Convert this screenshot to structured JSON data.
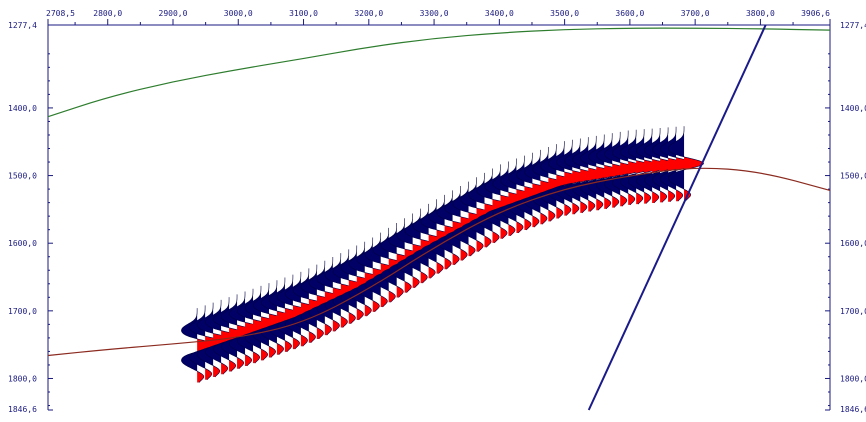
{
  "chart_data": {
    "type": "line",
    "title": "",
    "xlabel": "",
    "ylabel": "",
    "x_axis": {
      "position": "top",
      "range": [
        2708.5,
        3906.6
      ],
      "ticks": [
        2708.5,
        2800.0,
        2900.0,
        3000.0,
        3100.0,
        3200.0,
        3300.0,
        3400.0,
        3500.0,
        3600.0,
        3700.0,
        3800.0,
        3906.6
      ],
      "tick_labels": [
        "2708,5",
        "2800,0",
        "2900,0",
        "3000,0",
        "3100,0",
        "3200,0",
        "3300,0",
        "3400,0",
        "3500,0",
        "3600,0",
        "3700,0",
        "3800,0",
        "3906,6"
      ]
    },
    "y_axis": {
      "position": "left-and-right",
      "inverted": true,
      "range": [
        1277.4,
        1846.6
      ],
      "ticks": [
        1277.4,
        1400.0,
        1500.0,
        1600.0,
        1700.0,
        1800.0,
        1846.6
      ],
      "tick_labels": [
        "1277,4",
        "1400,0",
        "1500,0",
        "1600,0",
        "1700,0",
        "1800,0",
        "1846,6"
      ]
    },
    "grid": false,
    "series": [
      {
        "kind": "green-curve",
        "color": "#2e7d2e",
        "x": [
          2708.5,
          2800,
          2900,
          3000,
          3100,
          3200,
          3300,
          3400,
          3500,
          3600,
          3700,
          3800,
          3906.6
        ],
        "y": [
          1413,
          1384,
          1361,
          1343,
          1327,
          1310,
          1297,
          1289,
          1284,
          1282,
          1282,
          1283,
          1285
        ]
      },
      {
        "kind": "brown-curve",
        "color": "#8b2a1f",
        "x": [
          2708.5,
          2800,
          2900,
          3000,
          3100,
          3200,
          3300,
          3400,
          3500,
          3600,
          3700,
          3800,
          3906.6
        ],
        "y": [
          1766,
          1757,
          1749,
          1740,
          1718,
          1668,
          1606,
          1553,
          1519,
          1500,
          1487,
          1494,
          1522
        ]
      },
      {
        "kind": "straight-line",
        "color": "#1a1a8a",
        "x": [
          3537,
          3808
        ],
        "y": [
          1846.6,
          1277.4
        ]
      },
      {
        "kind": "wiggle-traces",
        "positive_fill": "#ff0000",
        "negative_fill": "#000066",
        "x_start": 2937,
        "x_end": 3683,
        "count": 62,
        "center_x": [
          2937,
          3000,
          3100,
          3200,
          3300,
          3400,
          3500,
          3600,
          3683
        ],
        "center_y": [
          1751,
          1730,
          1696,
          1650,
          1592,
          1539,
          1504,
          1488,
          1482
        ],
        "amplitude": 30,
        "half_window": 55
      }
    ]
  }
}
